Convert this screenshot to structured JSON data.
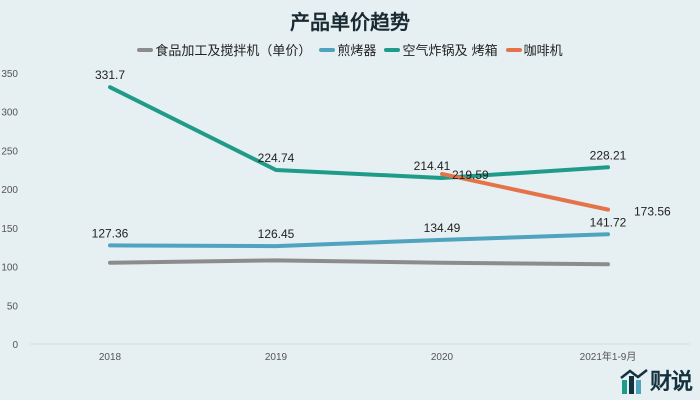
{
  "header": {
    "title": "产品单价趋势"
  },
  "legend": [
    {
      "label": "食品加工及搅拌机（单价）",
      "color": "#8c8c8c"
    },
    {
      "label": "煎烤器",
      "color": "#4fa3bf"
    },
    {
      "label": "空气炸锅及 烤箱",
      "color": "#1f9b8a"
    },
    {
      "label": "咖啡机",
      "color": "#e5734a"
    }
  ],
  "logo": {
    "text": "财说"
  },
  "chart_data": {
    "type": "line",
    "title": "产品单价趋势",
    "xlabel": "",
    "ylabel": "",
    "categories": [
      "2018",
      "2019",
      "2020",
      "2021年1-9月"
    ],
    "ylim": [
      0,
      350
    ],
    "yticks": [
      0,
      50,
      100,
      150,
      200,
      250,
      300,
      350
    ],
    "grid": false,
    "legend_position": "top",
    "series": [
      {
        "name": "食品加工及搅拌机（单价）",
        "color": "#8c8c8c",
        "values": [
          105,
          108,
          105,
          103
        ],
        "labels_shown": false
      },
      {
        "name": "煎烤器",
        "color": "#4fa3bf",
        "values": [
          127.36,
          126.45,
          134.49,
          141.72
        ],
        "labels_shown": true
      },
      {
        "name": "空气炸锅及 烤箱",
        "color": "#1f9b8a",
        "values": [
          331.7,
          224.74,
          214.41,
          228.21
        ],
        "labels_shown": true
      },
      {
        "name": "咖啡机",
        "color": "#e5734a",
        "values": [
          null,
          null,
          219.59,
          173.56
        ],
        "labels_shown": true
      }
    ]
  }
}
